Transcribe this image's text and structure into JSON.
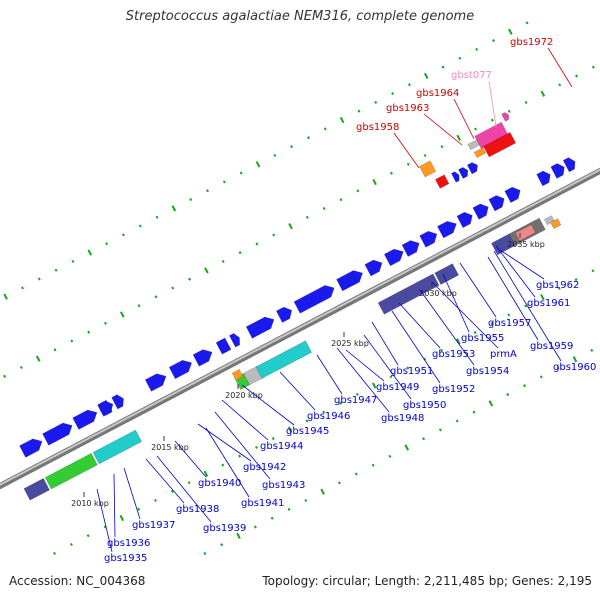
{
  "title": "Streptococcus agalactiae NEM316, complete genome",
  "footer": {
    "accession": "Accession: NC_004368",
    "topology": "Topology: circular; Length: 2,211,485 bp; Genes: 2,195"
  },
  "colors": {
    "backbone": "#8a8a8a",
    "gene_blue": "#1a1aee",
    "gene_dark": "#4a4aa0",
    "gene_cyan": "#22cccc",
    "gene_green": "#33cc33",
    "gene_orange": "#ff9922",
    "gene_red": "#ee1111",
    "gene_pink": "#ee44aa",
    "gene_gray": "#bbbbbb",
    "label_blue": "#0000cc",
    "label_red": "#cc0000",
    "label_pink": "#ee88cc"
  },
  "scale_ticks": [
    "2010 kbp",
    "2015 kbp",
    "2020 kbp",
    "2025 kbp",
    "2030 kbp",
    "2035 kbp"
  ],
  "labels_bottom": [
    "gbs1935",
    "gbs1936",
    "gbs1937",
    "gbs1938",
    "gbs1939",
    "gbs1940",
    "gbs1941",
    "gbs1942",
    "gbs1943",
    "gbs1944",
    "gbs1945",
    "gbs1946",
    "gbs1947",
    "gbs1948",
    "gbs1949",
    "gbs1950",
    "gbs1951",
    "gbs1952",
    "gbs1953",
    "gbs1954",
    "prmA",
    "gbs1955",
    "gbs1957",
    "gbs1959",
    "gbs1960",
    "gbs1961",
    "gbs1962"
  ],
  "labels_top": [
    "gbs1958",
    "gbs1963",
    "gbs1964",
    "gbst077",
    "gbs1972"
  ]
}
